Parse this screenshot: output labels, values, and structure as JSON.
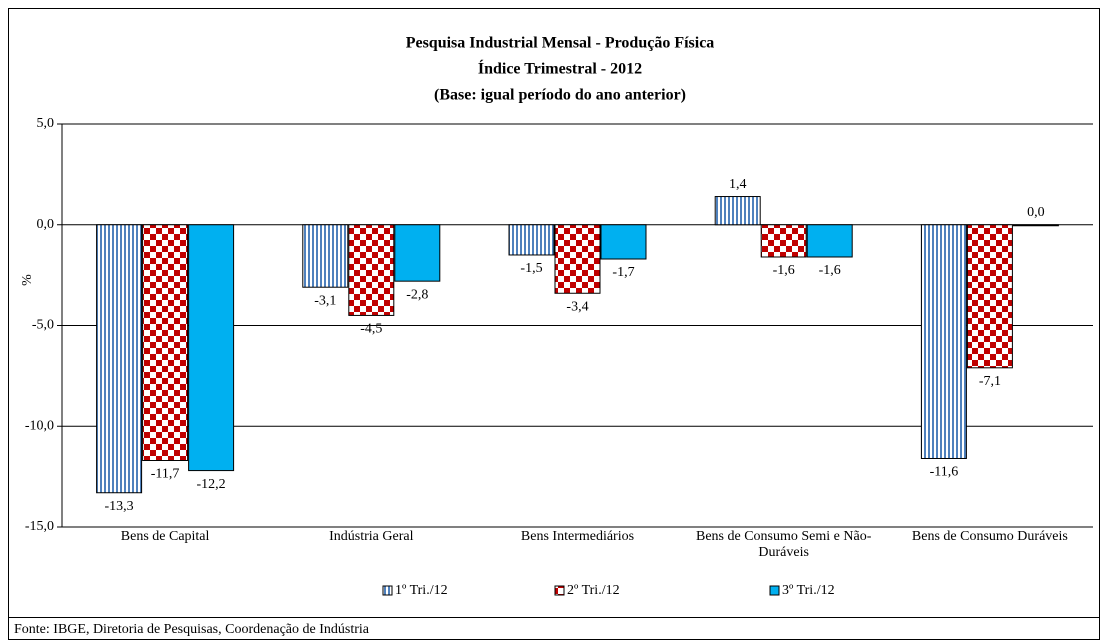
{
  "chart_data": {
    "type": "bar",
    "title": "Pesquisa Industrial Mensal - Produção Física",
    "subtitle": "Índice Trimestral - 2012",
    "subtitle2": "(Base: igual período do ano anterior)",
    "y_label": "%",
    "categories": [
      "Bens de Capital",
      "Indústria Geral",
      "Bens Intermediários",
      "Bens de Consumo Semi e Não-Duráveis",
      "Bens de Consumo Duráveis"
    ],
    "series": [
      {
        "name": "1º Tri./12",
        "color": "#4f81bd",
        "values": [
          -13.3,
          -3.1,
          -1.5,
          1.4,
          -11.6
        ],
        "value_labels": [
          "-13,3",
          "-3,1",
          "-1,5",
          "1,4",
          "-11,6"
        ]
      },
      {
        "name": "2º Tri./12",
        "color": "#c00000",
        "values": [
          -11.7,
          -4.5,
          -3.4,
          -1.6,
          -7.1
        ],
        "value_labels": [
          "-11,7",
          "-4,5",
          "-3,4",
          "-1,6",
          "-7,1"
        ]
      },
      {
        "name": "3º Tri./12",
        "color": "#00b0f0",
        "values": [
          -12.2,
          -2.8,
          -1.7,
          -1.6,
          0.0
        ],
        "value_labels": [
          "-12,2",
          "-2,8",
          "-1,7",
          "-1,6",
          "0,0"
        ]
      }
    ],
    "ylim": [
      -15,
      5
    ],
    "yticks": [
      {
        "value": -15,
        "label": "-15,0"
      },
      {
        "value": -10,
        "label": "-10,0"
      },
      {
        "value": -5,
        "label": "-5,0"
      },
      {
        "value": 0,
        "label": "0,0"
      },
      {
        "value": 5,
        "label": "5,0"
      }
    ],
    "grid": true,
    "legend": "bottom",
    "source": "Fonte: IBGE, Diretoria de Pesquisas, Coordenação de Indústria"
  }
}
